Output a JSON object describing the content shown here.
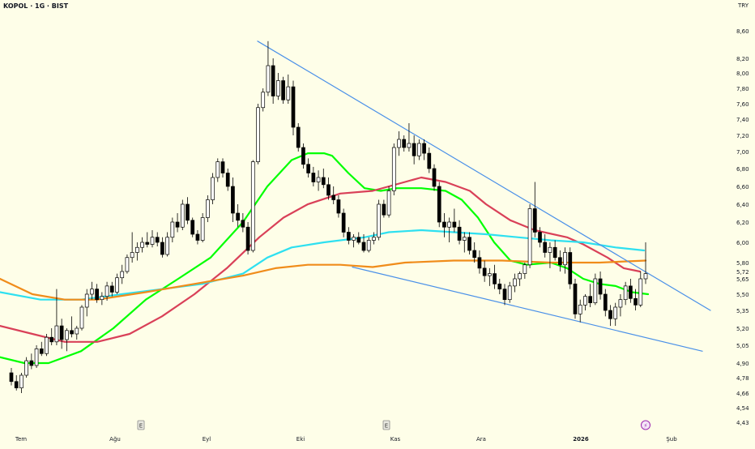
{
  "header": {
    "symbol_label": "KOPOL · 1G · BIST",
    "currency": "TRY"
  },
  "chart_data": {
    "type": "candlestick",
    "title": "",
    "y_ticks": [
      "8,60",
      "8,20",
      "8,00",
      "7,80",
      "7,60",
      "7,40",
      "7,20",
      "7,00",
      "6,80",
      "6,60",
      "6,40",
      "6,20",
      "6,00",
      "5,80",
      "5,72",
      "5,65",
      "5,50",
      "5,35",
      "5,20",
      "5,05",
      "4,90",
      "4,78",
      "4,66",
      "4,54",
      "4,43"
    ],
    "x_ticks": [
      "Tem",
      "Ağu",
      "Eyl",
      "Eki",
      "Kas",
      "Ara",
      "2026",
      "Şub"
    ],
    "event_markers": [
      {
        "label": "E",
        "date": "Ağu"
      },
      {
        "label": "E",
        "date": "Kas"
      },
      {
        "label": "⚡",
        "date": "2026-01"
      }
    ],
    "price_range": [
      4.43,
      8.6
    ],
    "series": [
      {
        "name": "",
        "color": "#00ff00",
        "kind": "ma",
        "points": [
          [
            0,
            4.95
          ],
          [
            30,
            4.9
          ],
          [
            60,
            4.9
          ],
          [
            100,
            5.0
          ],
          [
            140,
            5.2
          ],
          [
            180,
            5.45
          ],
          [
            220,
            5.65
          ],
          [
            260,
            5.85
          ],
          [
            300,
            6.2
          ],
          [
            330,
            6.6
          ],
          [
            360,
            6.9
          ],
          [
            380,
            6.98
          ],
          [
            400,
            6.98
          ],
          [
            410,
            6.95
          ],
          [
            430,
            6.75
          ],
          [
            450,
            6.58
          ],
          [
            470,
            6.55
          ],
          [
            490,
            6.58
          ],
          [
            520,
            6.58
          ],
          [
            550,
            6.55
          ],
          [
            570,
            6.45
          ],
          [
            590,
            6.25
          ],
          [
            610,
            6.0
          ],
          [
            630,
            5.82
          ],
          [
            650,
            5.78
          ],
          [
            680,
            5.8
          ],
          [
            700,
            5.75
          ],
          [
            720,
            5.65
          ],
          [
            740,
            5.6
          ],
          [
            760,
            5.58
          ],
          [
            780,
            5.52
          ],
          [
            800,
            5.5
          ]
        ]
      },
      {
        "name": "",
        "color": "#d94058",
        "kind": "ma",
        "points": [
          [
            0,
            5.22
          ],
          [
            40,
            5.15
          ],
          [
            80,
            5.08
          ],
          [
            120,
            5.08
          ],
          [
            160,
            5.15
          ],
          [
            200,
            5.3
          ],
          [
            240,
            5.5
          ],
          [
            280,
            5.75
          ],
          [
            320,
            6.05
          ],
          [
            350,
            6.25
          ],
          [
            380,
            6.4
          ],
          [
            420,
            6.52
          ],
          [
            460,
            6.55
          ],
          [
            500,
            6.65
          ],
          [
            520,
            6.7
          ],
          [
            550,
            6.65
          ],
          [
            580,
            6.55
          ],
          [
            600,
            6.4
          ],
          [
            630,
            6.22
          ],
          [
            660,
            6.12
          ],
          [
            700,
            6.05
          ],
          [
            720,
            5.98
          ],
          [
            750,
            5.85
          ],
          [
            770,
            5.75
          ],
          [
            790,
            5.72
          ]
        ]
      },
      {
        "name": "",
        "color": "#2ee0f0",
        "kind": "ma",
        "points": [
          [
            0,
            5.52
          ],
          [
            50,
            5.45
          ],
          [
            100,
            5.45
          ],
          [
            150,
            5.5
          ],
          [
            200,
            5.55
          ],
          [
            250,
            5.6
          ],
          [
            300,
            5.7
          ],
          [
            330,
            5.85
          ],
          [
            360,
            5.95
          ],
          [
            400,
            6.0
          ],
          [
            450,
            6.05
          ],
          [
            480,
            6.1
          ],
          [
            520,
            6.12
          ],
          [
            560,
            6.1
          ],
          [
            600,
            6.08
          ],
          [
            640,
            6.05
          ],
          [
            680,
            6.02
          ],
          [
            720,
            6.0
          ],
          [
            760,
            5.95
          ],
          [
            795,
            5.92
          ]
        ]
      },
      {
        "name": "",
        "color": "#f08c1a",
        "kind": "ma",
        "points": [
          [
            0,
            5.65
          ],
          [
            40,
            5.5
          ],
          [
            80,
            5.45
          ],
          [
            120,
            5.45
          ],
          [
            180,
            5.52
          ],
          [
            240,
            5.6
          ],
          [
            300,
            5.68
          ],
          [
            340,
            5.75
          ],
          [
            380,
            5.78
          ],
          [
            420,
            5.78
          ],
          [
            460,
            5.76
          ],
          [
            500,
            5.8
          ],
          [
            560,
            5.82
          ],
          [
            620,
            5.82
          ],
          [
            680,
            5.8
          ],
          [
            740,
            5.8
          ],
          [
            797,
            5.82
          ]
        ]
      },
      {
        "name": "",
        "color": "#4a90e8",
        "kind": "trendline",
        "points": [
          [
            318,
            8.45
          ],
          [
            877,
            5.35
          ]
        ]
      },
      {
        "name": "",
        "color": "#4a90e8",
        "kind": "trendline",
        "points": [
          [
            435,
            5.76
          ],
          [
            867,
            5.0
          ]
        ]
      }
    ],
    "candles_ohlc": [
      [
        4.82,
        4.86,
        4.72,
        4.75
      ],
      [
        4.75,
        4.8,
        4.68,
        4.7
      ],
      [
        4.7,
        4.82,
        4.66,
        4.8
      ],
      [
        4.8,
        4.95,
        4.78,
        4.92
      ],
      [
        4.92,
        4.98,
        4.85,
        4.88
      ],
      [
        4.88,
        5.05,
        4.86,
        5.02
      ],
      [
        5.02,
        5.08,
        4.96,
        4.98
      ],
      [
        4.98,
        5.15,
        4.96,
        5.12
      ],
      [
        5.12,
        5.2,
        5.05,
        5.08
      ],
      [
        5.08,
        5.55,
        5.05,
        5.22
      ],
      [
        5.22,
        5.28,
        5.02,
        5.1
      ],
      [
        5.1,
        5.2,
        5.0,
        5.18
      ],
      [
        5.18,
        5.3,
        5.12,
        5.15
      ],
      [
        5.15,
        5.22,
        5.1,
        5.2
      ],
      [
        5.2,
        5.4,
        5.18,
        5.38
      ],
      [
        5.38,
        5.55,
        5.3,
        5.5
      ],
      [
        5.5,
        5.62,
        5.45,
        5.55
      ],
      [
        5.55,
        5.6,
        5.42,
        5.45
      ],
      [
        5.45,
        5.52,
        5.4,
        5.48
      ],
      [
        5.48,
        5.62,
        5.44,
        5.58
      ],
      [
        5.58,
        5.62,
        5.48,
        5.52
      ],
      [
        5.52,
        5.7,
        5.5,
        5.66
      ],
      [
        5.66,
        5.78,
        5.6,
        5.72
      ],
      [
        5.72,
        5.88,
        5.7,
        5.85
      ],
      [
        5.85,
        6.1,
        5.8,
        5.9
      ],
      [
        5.9,
        6.0,
        5.82,
        5.95
      ],
      [
        5.95,
        6.05,
        5.9,
        6.0
      ],
      [
        6.0,
        6.1,
        5.95,
        5.98
      ],
      [
        5.98,
        6.12,
        5.95,
        6.05
      ],
      [
        6.05,
        6.1,
        5.96,
        6.0
      ],
      [
        6.0,
        6.05,
        5.85,
        5.88
      ],
      [
        5.88,
        6.1,
        5.86,
        6.05
      ],
      [
        6.05,
        6.25,
        6.0,
        6.2
      ],
      [
        6.2,
        6.3,
        6.1,
        6.15
      ],
      [
        6.15,
        6.45,
        6.12,
        6.4
      ],
      [
        6.4,
        6.48,
        6.18,
        6.22
      ],
      [
        6.22,
        6.25,
        6.05,
        6.08
      ],
      [
        6.08,
        6.12,
        5.98,
        6.02
      ],
      [
        6.02,
        6.3,
        6.0,
        6.25
      ],
      [
        6.25,
        6.5,
        6.2,
        6.45
      ],
      [
        6.45,
        6.75,
        6.4,
        6.7
      ],
      [
        6.7,
        6.92,
        6.65,
        6.88
      ],
      [
        6.88,
        6.92,
        6.7,
        6.75
      ],
      [
        6.75,
        6.8,
        6.55,
        6.6
      ],
      [
        6.6,
        6.7,
        6.2,
        6.3
      ],
      [
        6.3,
        6.4,
        6.15,
        6.22
      ],
      [
        6.22,
        6.3,
        6.1,
        6.15
      ],
      [
        6.15,
        6.2,
        5.88,
        5.92
      ],
      [
        5.92,
        6.9,
        5.9,
        6.88
      ],
      [
        6.88,
        7.6,
        6.85,
        7.55
      ],
      [
        7.55,
        7.8,
        7.5,
        7.75
      ],
      [
        7.75,
        8.45,
        7.7,
        8.1
      ],
      [
        8.1,
        8.2,
        7.6,
        7.7
      ],
      [
        7.7,
        8.0,
        7.65,
        7.9
      ],
      [
        7.9,
        7.95,
        7.6,
        7.65
      ],
      [
        7.65,
        7.98,
        7.6,
        7.82
      ],
      [
        7.82,
        7.9,
        7.2,
        7.3
      ],
      [
        7.3,
        7.35,
        7.0,
        7.05
      ],
      [
        7.05,
        7.1,
        6.8,
        6.85
      ],
      [
        6.85,
        6.92,
        6.7,
        6.75
      ],
      [
        6.75,
        6.82,
        6.6,
        6.65
      ],
      [
        6.65,
        6.78,
        6.55,
        6.7
      ],
      [
        6.7,
        6.8,
        6.58,
        6.62
      ],
      [
        6.62,
        6.7,
        6.45,
        6.5
      ],
      [
        6.5,
        6.6,
        6.4,
        6.45
      ],
      [
        6.45,
        6.5,
        6.25,
        6.3
      ],
      [
        6.3,
        6.35,
        6.05,
        6.1
      ],
      [
        6.1,
        6.15,
        5.98,
        6.02
      ],
      [
        6.02,
        6.08,
        5.95,
        6.05
      ],
      [
        6.05,
        6.1,
        5.98,
        6.0
      ],
      [
        6.0,
        6.08,
        5.9,
        5.92
      ],
      [
        5.92,
        6.05,
        5.9,
        6.02
      ],
      [
        6.02,
        6.1,
        5.98,
        6.05
      ],
      [
        6.05,
        6.45,
        6.02,
        6.4
      ],
      [
        6.4,
        6.45,
        6.25,
        6.28
      ],
      [
        6.28,
        6.6,
        6.25,
        6.55
      ],
      [
        6.55,
        7.1,
        6.5,
        7.05
      ],
      [
        7.05,
        7.25,
        6.95,
        7.15
      ],
      [
        7.15,
        7.2,
        7.0,
        7.05
      ],
      [
        7.05,
        7.35,
        7.0,
        7.1
      ],
      [
        7.1,
        7.2,
        6.85,
        6.95
      ],
      [
        6.95,
        7.15,
        6.9,
        7.1
      ],
      [
        7.1,
        7.15,
        6.9,
        6.98
      ],
      [
        6.98,
        7.05,
        6.75,
        6.8
      ],
      [
        6.8,
        6.85,
        6.55,
        6.6
      ],
      [
        6.6,
        6.65,
        6.15,
        6.2
      ],
      [
        6.2,
        6.3,
        6.05,
        6.15
      ],
      [
        6.15,
        6.25,
        6.0,
        6.2
      ],
      [
        6.2,
        6.35,
        6.1,
        6.15
      ],
      [
        6.15,
        6.22,
        5.98,
        6.02
      ],
      [
        6.02,
        6.1,
        5.9,
        6.05
      ],
      [
        6.05,
        6.1,
        5.88,
        5.92
      ],
      [
        5.92,
        6.0,
        5.8,
        5.85
      ],
      [
        5.85,
        5.92,
        5.7,
        5.75
      ],
      [
        5.75,
        5.82,
        5.62,
        5.68
      ],
      [
        5.68,
        5.75,
        5.58,
        5.7
      ],
      [
        5.7,
        5.78,
        5.55,
        5.6
      ],
      [
        5.6,
        5.65,
        5.5,
        5.55
      ],
      [
        5.55,
        5.6,
        5.4,
        5.45
      ],
      [
        5.45,
        5.62,
        5.42,
        5.58
      ],
      [
        5.58,
        5.7,
        5.52,
        5.65
      ],
      [
        5.65,
        5.72,
        5.58,
        5.7
      ],
      [
        5.7,
        5.8,
        5.65,
        5.78
      ],
      [
        5.78,
        6.4,
        5.75,
        6.35
      ],
      [
        6.35,
        6.65,
        6.05,
        6.1
      ],
      [
        6.1,
        6.15,
        5.95,
        6.0
      ],
      [
        6.0,
        6.08,
        5.85,
        5.9
      ],
      [
        5.9,
        6.0,
        5.75,
        5.95
      ],
      [
        5.95,
        6.02,
        5.82,
        5.85
      ],
      [
        5.85,
        5.92,
        5.72,
        5.78
      ],
      [
        5.78,
        5.95,
        5.7,
        5.9
      ],
      [
        5.9,
        5.95,
        5.55,
        5.6
      ],
      [
        5.6,
        5.65,
        5.28,
        5.32
      ],
      [
        5.32,
        5.45,
        5.25,
        5.4
      ],
      [
        5.4,
        5.5,
        5.35,
        5.48
      ],
      [
        5.48,
        5.6,
        5.38,
        5.42
      ],
      [
        5.42,
        5.7,
        5.4,
        5.65
      ],
      [
        5.65,
        5.72,
        5.45,
        5.5
      ],
      [
        5.5,
        5.55,
        5.3,
        5.35
      ],
      [
        5.35,
        5.4,
        5.22,
        5.28
      ],
      [
        5.28,
        5.42,
        5.22,
        5.38
      ],
      [
        5.38,
        5.5,
        5.3,
        5.45
      ],
      [
        5.45,
        5.62,
        5.4,
        5.58
      ],
      [
        5.58,
        5.65,
        5.42,
        5.46
      ],
      [
        5.46,
        5.55,
        5.35,
        5.4
      ],
      [
        5.4,
        5.72,
        5.38,
        5.65
      ],
      [
        5.65,
        6.0,
        5.6,
        5.7
      ]
    ]
  }
}
